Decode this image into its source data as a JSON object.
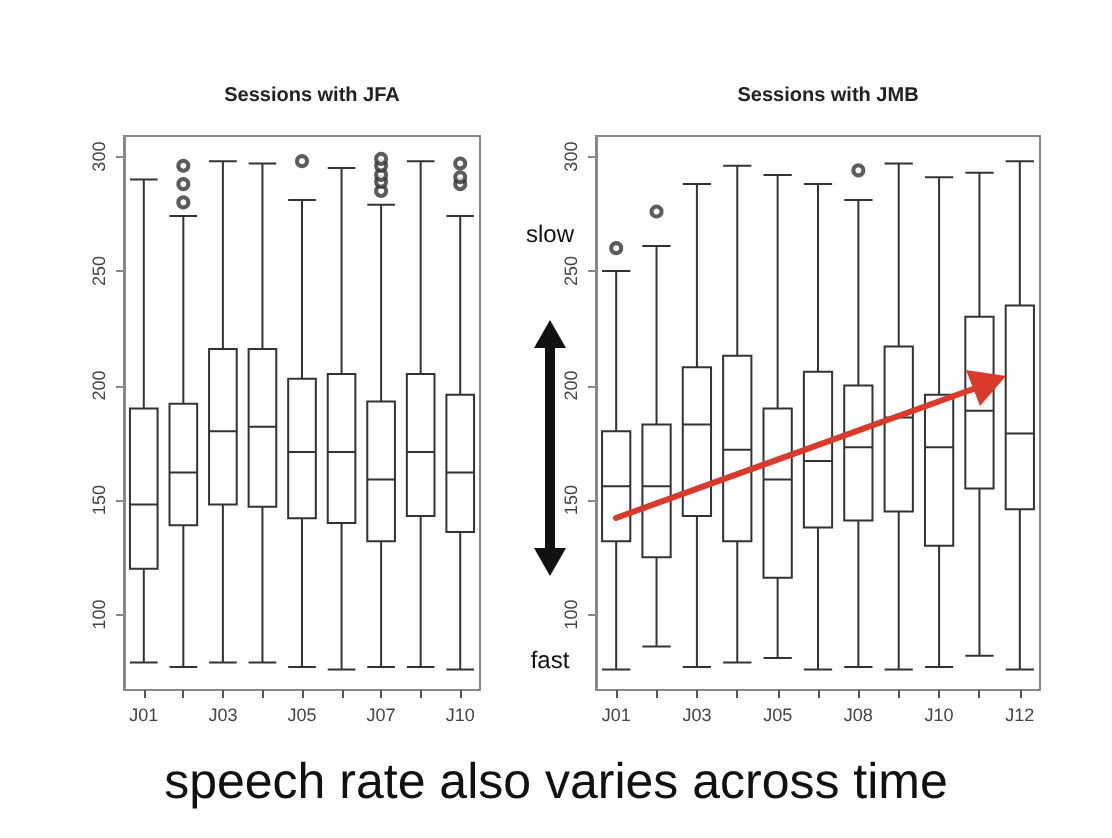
{
  "chart_data": [
    {
      "type": "box",
      "title": "Sessions with JFA",
      "categories": [
        "J01",
        null,
        "J03",
        null,
        "J05",
        null,
        "J07",
        null,
        "J10"
      ],
      "boxes": [
        {
          "low": 79,
          "q1": 120,
          "median": 148,
          "q3": 190,
          "high": 290
        },
        {
          "low": 77,
          "q1": 139,
          "median": 162,
          "q3": 192,
          "high": 274,
          "outliers": [
            280,
            288,
            296
          ]
        },
        {
          "low": 79,
          "q1": 148,
          "median": 180,
          "q3": 216,
          "high": 298
        },
        {
          "low": 79,
          "q1": 147,
          "median": 182,
          "q3": 216,
          "high": 297
        },
        {
          "low": 77,
          "q1": 142,
          "median": 171,
          "q3": 203,
          "high": 281,
          "outliers": [
            298
          ]
        },
        {
          "low": 76,
          "q1": 140,
          "median": 171,
          "q3": 205,
          "high": 295
        },
        {
          "low": 77,
          "q1": 132,
          "median": 159,
          "q3": 193,
          "high": 279,
          "outliers": [
            285,
            289,
            292,
            296,
            299
          ]
        },
        {
          "low": 77,
          "q1": 143,
          "median": 171,
          "q3": 205,
          "high": 298
        },
        {
          "low": 76,
          "q1": 136,
          "median": 162,
          "q3": 196,
          "high": 274,
          "outliers": [
            288,
            291,
            297
          ]
        }
      ],
      "ylim": [
        67,
        309
      ],
      "yticks": [
        100,
        150,
        200,
        250,
        300
      ]
    },
    {
      "type": "box",
      "title": "Sessions with JMB",
      "categories": [
        "J01",
        null,
        "J03",
        null,
        "J05",
        null,
        "J08",
        null,
        "J10",
        null,
        "J12"
      ],
      "boxes": [
        {
          "low": 76,
          "q1": 132,
          "median": 156,
          "q3": 180,
          "high": 250,
          "outliers": [
            260
          ]
        },
        {
          "low": 86,
          "q1": 125,
          "median": 156,
          "q3": 183,
          "high": 261,
          "outliers": [
            276
          ]
        },
        {
          "low": 77,
          "q1": 143,
          "median": 183,
          "q3": 208,
          "high": 288
        },
        {
          "low": 79,
          "q1": 132,
          "median": 172,
          "q3": 213,
          "high": 296
        },
        {
          "low": 81,
          "q1": 116,
          "median": 159,
          "q3": 190,
          "high": 292
        },
        {
          "low": 76,
          "q1": 138,
          "median": 167,
          "q3": 206,
          "high": 288
        },
        {
          "low": 77,
          "q1": 141,
          "median": 173,
          "q3": 200,
          "high": 281,
          "outliers": [
            294
          ]
        },
        {
          "low": 76,
          "q1": 145,
          "median": 186,
          "q3": 217,
          "high": 297
        },
        {
          "low": 77,
          "q1": 130,
          "median": 173,
          "q3": 196,
          "high": 291
        },
        {
          "low": 82,
          "q1": 155,
          "median": 189,
          "q3": 230,
          "high": 293
        },
        {
          "low": 76,
          "q1": 146,
          "median": 179,
          "q3": 235,
          "high": 298
        }
      ],
      "ylim": [
        67,
        309
      ],
      "yticks": [
        100,
        150,
        200,
        250,
        300
      ]
    },
    {
      "type": "other",
      "annotations": [
        "slow",
        "fast",
        "speech rate also varies across time"
      ]
    }
  ]
}
